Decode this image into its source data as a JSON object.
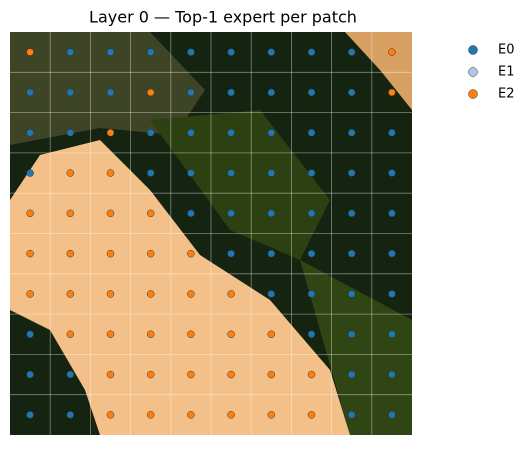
{
  "chart_data": {
    "type": "patch-grid",
    "title": "Layer 0 — Top-1 expert per patch",
    "series": [
      {
        "name": "E0",
        "color": "#1f77b4"
      },
      {
        "name": "E1",
        "color": "#aec7e8"
      },
      {
        "name": "E2",
        "color": "#ff7f0e"
      }
    ],
    "assignments": [
      [
        2,
        0,
        0,
        0,
        0,
        0,
        0,
        0,
        0,
        2
      ],
      [
        0,
        0,
        0,
        2,
        0,
        0,
        0,
        0,
        0,
        2
      ],
      [
        0,
        0,
        2,
        0,
        0,
        0,
        0,
        0,
        0,
        0
      ],
      [
        0,
        2,
        2,
        0,
        0,
        0,
        0,
        0,
        0,
        0
      ],
      [
        2,
        2,
        2,
        2,
        0,
        0,
        0,
        0,
        0,
        0
      ],
      [
        2,
        2,
        2,
        2,
        2,
        0,
        0,
        0,
        0,
        0
      ],
      [
        2,
        2,
        2,
        2,
        2,
        2,
        0,
        0,
        0,
        0
      ],
      [
        0,
        2,
        2,
        2,
        2,
        2,
        2,
        0,
        0,
        0
      ],
      [
        0,
        0,
        2,
        2,
        2,
        2,
        2,
        2,
        0,
        0
      ],
      [
        0,
        0,
        2,
        2,
        2,
        2,
        2,
        2,
        0,
        0
      ]
    ]
  }
}
